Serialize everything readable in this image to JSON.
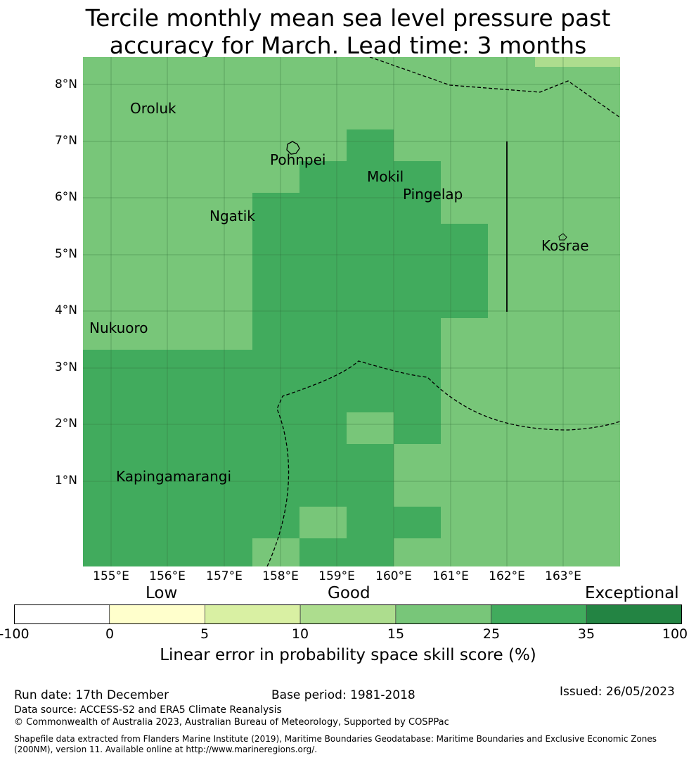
{
  "title_line1": "Tercile monthly mean sea level pressure past",
  "title_line2": "accuracy for March. Lead time: 3 months",
  "map": {
    "lat_labels": [
      "8°N",
      "7°N",
      "6°N",
      "5°N",
      "4°N",
      "3°N",
      "2°N",
      "1°N"
    ],
    "lon_labels": [
      "155°E",
      "156°E",
      "157°E",
      "158°E",
      "159°E",
      "160°E",
      "161°E",
      "162°E",
      "163°E"
    ],
    "places": [
      "Oroluk",
      "Pohnpei",
      "Mokil",
      "Pingelap",
      "Ngatik",
      "Kosrae",
      "Nukuoro",
      "Kapingamarangi"
    ],
    "colors": {
      "band_15_25": "#78c679",
      "band_25_35": "#41ab5d",
      "band_10_15": "#addd8e"
    }
  },
  "legend": {
    "categories": [
      "Low",
      "Good",
      "Exceptional"
    ],
    "ticks": [
      "-100",
      "0",
      "5",
      "10",
      "15",
      "25",
      "35",
      "100"
    ],
    "colors": [
      "#ffffff",
      "#ffffcc",
      "#d9f0a3",
      "#addd8e",
      "#78c679",
      "#41ab5d",
      "#238443"
    ],
    "title": "Linear error in probability space skill score (%)"
  },
  "footer": {
    "run_date": "Run date: 17th December",
    "base_period": "Base period: 1981-2018",
    "issued": "Issued: 26/05/2023",
    "data_source": "Data source: ACCESS-S2 and ERA5 Climate Reanalysis",
    "copyright": "© Commonwealth of Australia 2023, Australian Bureau of Meteorology, Supported by COSPPac",
    "shapefile_line1": "Shapefile data extracted from Flanders Marine Institute (2019), Maritime Boundaries Geodatabase: Maritime Boundaries and Exclusive Economic Zones",
    "shapefile_line2": "(200NM), version 11. Available online at http://www.marineregions.org/."
  }
}
